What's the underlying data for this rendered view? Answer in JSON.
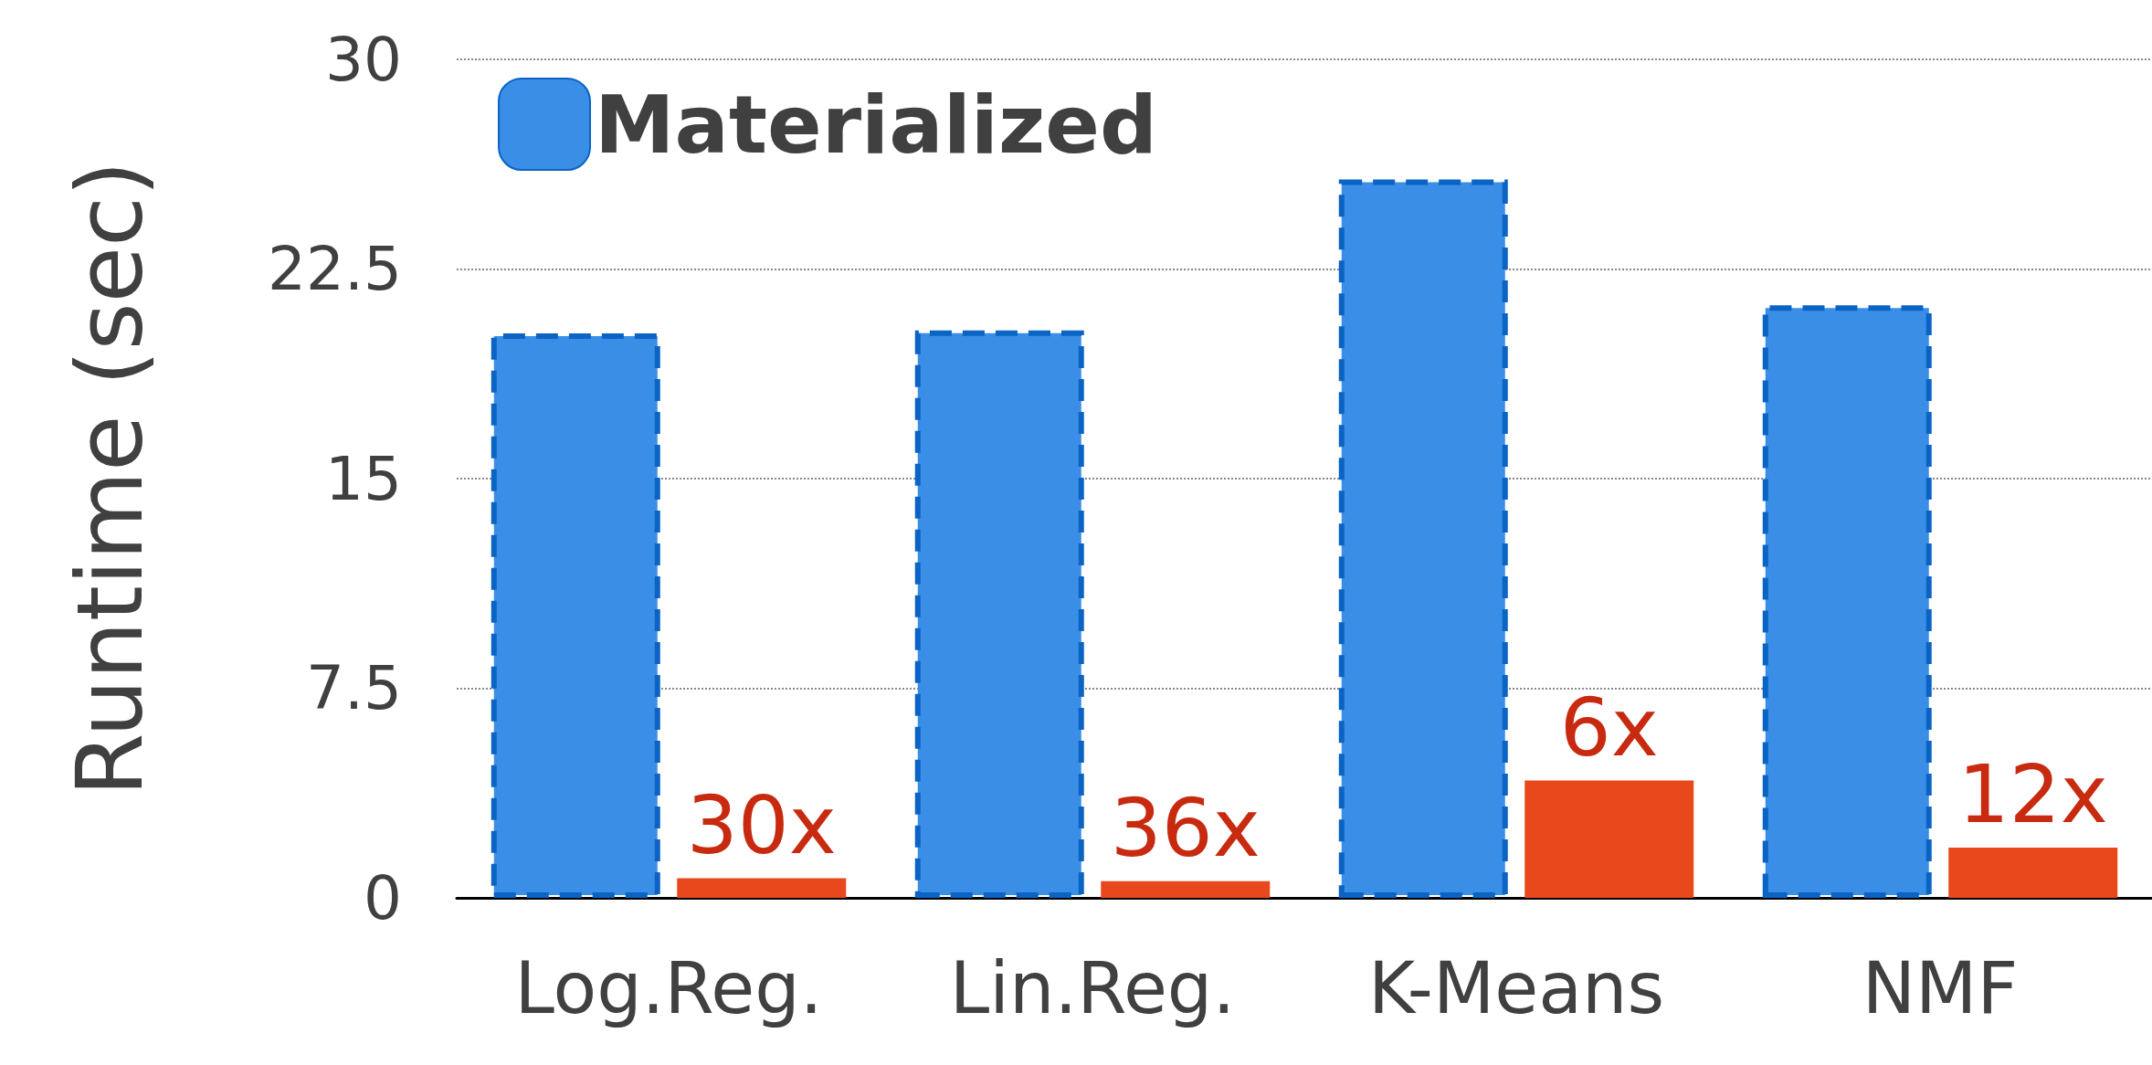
{
  "chart_data": {
    "type": "bar",
    "ylabel": "Runtime (sec)",
    "categories": [
      "Log.Reg.",
      "Lin.Reg.",
      "K-Means",
      "NMF"
    ],
    "series": [
      {
        "name": "Materialized",
        "color": "#3a8ee6",
        "values": [
          20.2,
          20.3,
          25.7,
          21.2
        ]
      },
      {
        "color": "#e8481c",
        "values": [
          0.7,
          0.6,
          4.2,
          1.8
        ]
      }
    ],
    "annotations": [
      "30x",
      "36x",
      "6x",
      "12x"
    ],
    "ylim": [
      0,
      30
    ],
    "yticks": [
      0,
      7.5,
      15,
      22.5,
      30
    ],
    "grid": "y",
    "legend": "top left"
  }
}
